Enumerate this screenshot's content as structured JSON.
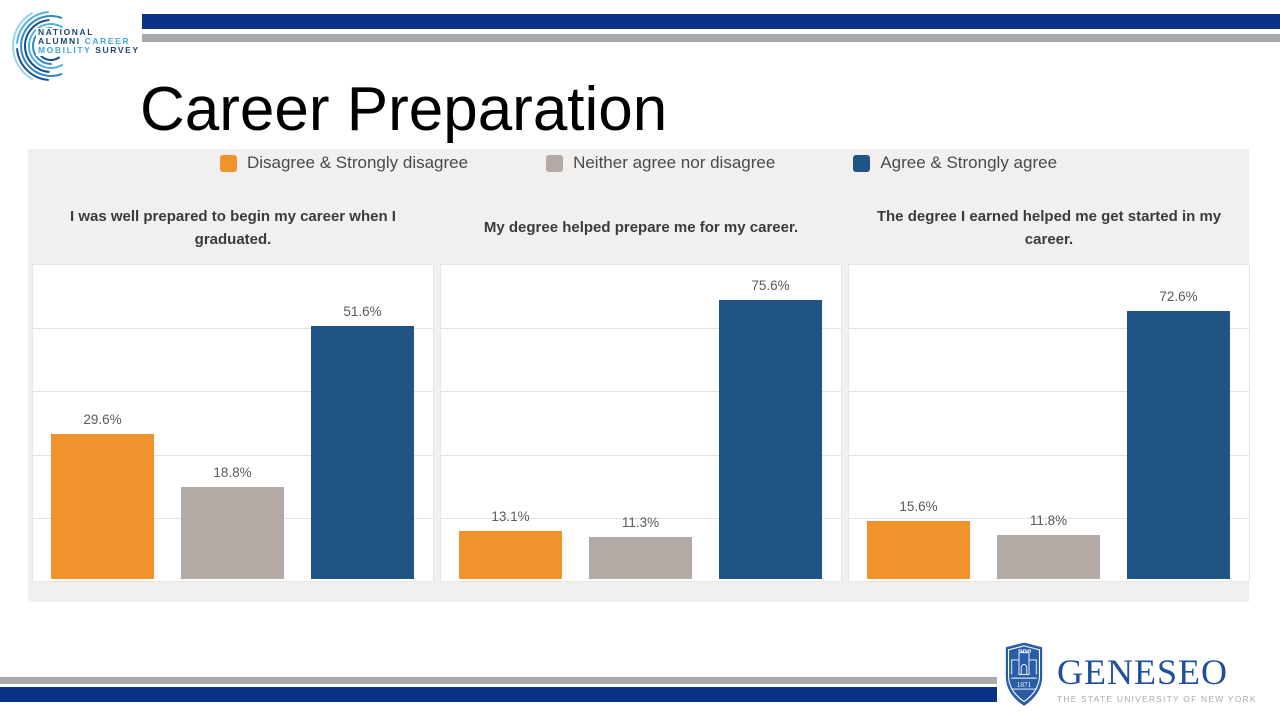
{
  "slide": {
    "title": "Career Preparation"
  },
  "branding": {
    "nacm_logo": {
      "line1": "NATIONAL",
      "line2_a": "ALUMNI",
      "line2_b": "CAREER",
      "line3_a": "MOBILITY",
      "line3_b": "SURVEY",
      "navy": "#1d4575",
      "light_blue": "#41a9d9"
    },
    "geneseo_logo": {
      "wordmark": "GENESEO",
      "tagline": "THE STATE UNIVERSITY OF NEW YORK",
      "shield_year": "1871",
      "blue": "#1f4f9c",
      "tagline_gray": "#a4abb1"
    }
  },
  "decor": {
    "navy": "#0a3287",
    "gray": "#a7abad"
  },
  "legend": {
    "items": [
      {
        "label": "Disagree & Strongly disagree",
        "color": "#f0932d"
      },
      {
        "label": "Neither agree nor disagree",
        "color": "#b3a9a5"
      },
      {
        "label": "Agree & Strongly agree",
        "color": "#1f5484"
      }
    ]
  },
  "chart_data": [
    {
      "type": "bar",
      "title": "I was well prepared to begin my career when I graduated.",
      "categories": [
        "Disagree & Strongly disagree",
        "Neither agree nor disagree",
        "Agree & Strongly agree"
      ],
      "values": [
        29.6,
        18.8,
        51.6
      ],
      "labels": [
        "29.6%",
        "18.8%",
        "51.6%"
      ],
      "colors": [
        "#f0932d",
        "#b3a9a5",
        "#1f5484"
      ],
      "xlabel": "",
      "ylabel": "",
      "ylim": [
        0,
        64.5
      ],
      "grid": true,
      "legend_position": "top"
    },
    {
      "type": "bar",
      "title": "My degree helped prepare me for my career.",
      "categories": [
        "Disagree & Strongly disagree",
        "Neither agree nor disagree",
        "Agree & Strongly agree"
      ],
      "values": [
        13.1,
        11.3,
        75.6
      ],
      "labels": [
        "13.1%",
        "11.3%",
        "75.6%"
      ],
      "colors": [
        "#f0932d",
        "#b3a9a5",
        "#1f5484"
      ],
      "xlabel": "",
      "ylabel": "",
      "ylim": [
        0,
        85.6
      ],
      "grid": true,
      "legend_position": "top"
    },
    {
      "type": "bar",
      "title": "The degree I earned helped me get started in my career.",
      "categories": [
        "Disagree & Strongly disagree",
        "Neither agree nor disagree",
        "Agree & Strongly agree"
      ],
      "values": [
        15.6,
        11.8,
        72.6
      ],
      "labels": [
        "15.6%",
        "11.8%",
        "72.6%"
      ],
      "colors": [
        "#f0932d",
        "#b3a9a5",
        "#1f5484"
      ],
      "xlabel": "",
      "ylabel": "",
      "ylim": [
        0,
        85.6
      ],
      "grid": true,
      "legend_position": "top"
    }
  ]
}
